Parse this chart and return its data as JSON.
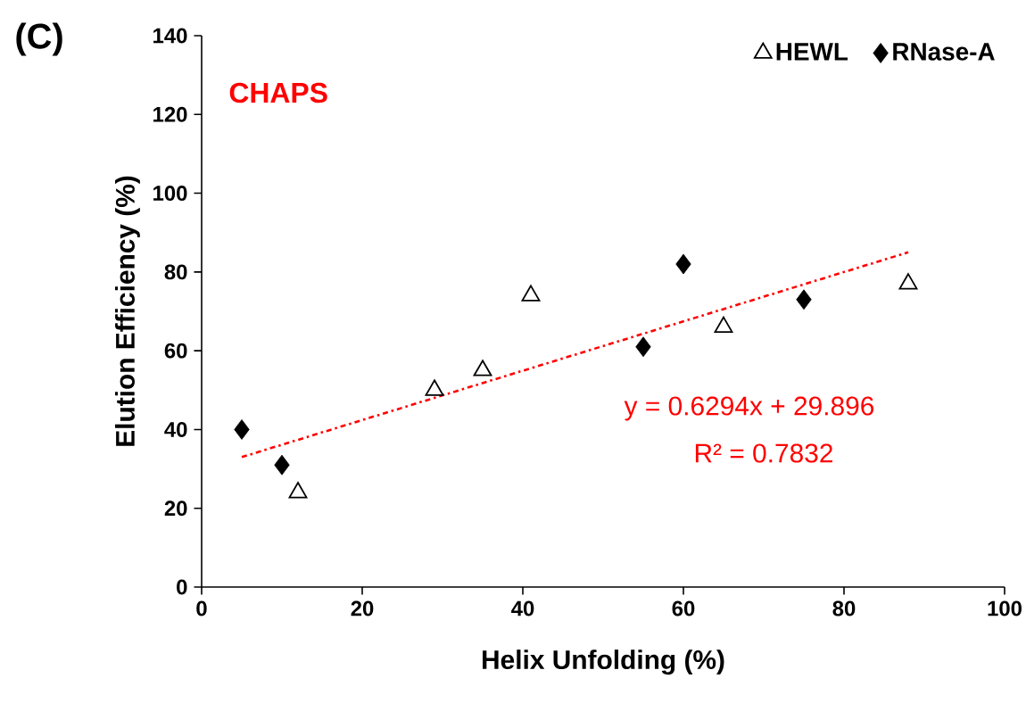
{
  "chart_data": {
    "type": "scatter",
    "xlabel": "Helix Unfolding (%)",
    "ylabel": "Elution Efficiency (%)",
    "xlim": [
      0,
      100
    ],
    "xticks": [
      0,
      20,
      40,
      60,
      80,
      100
    ],
    "ylim": [
      0,
      140
    ],
    "yticks": [
      0,
      20,
      40,
      60,
      80,
      100,
      120,
      140
    ],
    "grid": false,
    "legend": "top right",
    "annotations": [
      "(C)",
      "CHAPS",
      "y = 0.6294x + 29.896",
      "R² = 0.7832"
    ],
    "series": [
      {
        "name": "HEWL",
        "marker": "triangle",
        "color": "#000000",
        "x": [
          12,
          29,
          35,
          41,
          65,
          88
        ],
        "values": [
          24,
          50,
          55,
          74,
          66,
          77
        ]
      },
      {
        "name": "RNase-A",
        "marker": "diamond",
        "color": "#000000",
        "x": [
          5,
          10,
          55,
          60,
          75
        ],
        "values": [
          40,
          31,
          61,
          82,
          73
        ]
      },
      {
        "type": "line",
        "marker": "none",
        "line_style": "dashdot",
        "color": "#ff0000",
        "x": [
          5,
          88
        ],
        "values": [
          33,
          85
        ]
      }
    ]
  }
}
